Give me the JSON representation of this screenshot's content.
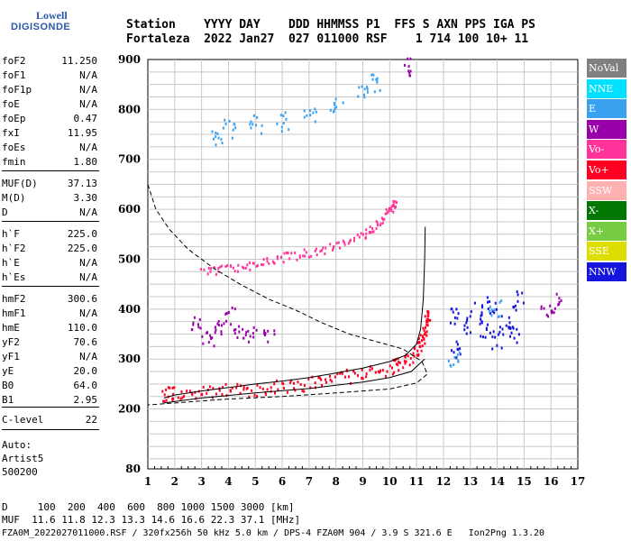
{
  "logo": {
    "line1": "Lowell",
    "line2": "DIGISONDE"
  },
  "header": {
    "row1": "Station    YYYY DAY    DDD HHMMSS P1  FFS S AXN PPS IGA PS",
    "row2": "Fortaleza  2022 Jan27  027 011000 RSF    1 714 100 10+ 11"
  },
  "params": [
    {
      "k": "foF2",
      "v": "11.250"
    },
    {
      "k": "foF1",
      "v": "N/A"
    },
    {
      "k": "foF1p",
      "v": "N/A"
    },
    {
      "k": "foE",
      "v": "N/A"
    },
    {
      "k": "foEp",
      "v": "0.47"
    },
    {
      "k": "fxI",
      "v": "11.95"
    },
    {
      "k": "foEs",
      "v": "N/A"
    },
    {
      "k": "fmin",
      "v": "1.80"
    },
    {
      "k": "MUF(D)",
      "v": "37.13"
    },
    {
      "k": "M(D)",
      "v": "3.30"
    },
    {
      "k": "D",
      "v": "N/A"
    },
    {
      "k": "h`F",
      "v": "225.0"
    },
    {
      "k": "h`F2",
      "v": "225.0"
    },
    {
      "k": "h`E",
      "v": "N/A"
    },
    {
      "k": "h`Es",
      "v": "N/A"
    },
    {
      "k": "hmF2",
      "v": "300.6"
    },
    {
      "k": "hmF1",
      "v": "N/A"
    },
    {
      "k": "hmE",
      "v": "110.0"
    },
    {
      "k": "yF2",
      "v": "70.6"
    },
    {
      "k": "yF1",
      "v": "N/A"
    },
    {
      "k": "yE",
      "v": "20.0"
    },
    {
      "k": "B0",
      "v": "64.0"
    },
    {
      "k": "B1",
      "v": "2.95"
    },
    {
      "k": "C-level",
      "v": "22"
    }
  ],
  "auto": {
    "line1": "Auto:",
    "line2": "Artist5",
    "line3": "500200"
  },
  "legend": [
    {
      "label": "NoVal",
      "color": "#808080"
    },
    {
      "label": "NNE",
      "color": "#00e0ff"
    },
    {
      "label": "E",
      "color": "#3aa0f0"
    },
    {
      "label": "W",
      "color": "#9900aa"
    },
    {
      "label": "Vo-",
      "color": "#ff3399"
    },
    {
      "label": "Vo+",
      "color": "#ff0022"
    },
    {
      "label": "SSW",
      "color": "#ffb0b0"
    },
    {
      "label": "X-",
      "color": "#007700"
    },
    {
      "label": "X+",
      "color": "#77cc44"
    },
    {
      "label": "SSE",
      "color": "#dddd00"
    },
    {
      "label": "NNW",
      "color": "#1515dd"
    }
  ],
  "bottom": {
    "line1": "D     100  200  400  600  800 1000 1500 3000 [km]",
    "line2": "MUF  11.6 11.8 12.3 13.3 14.6 16.6 22.3 37.1 [MHz]"
  },
  "fileinfo": "FZA0M_2022027011000.RSF / 320fx256h 50 kHz 5.0 km / DPS-4 FZA0M 904 / 3.9 S 321.6 E   Ion2Png 1.3.20",
  "chart_data": {
    "type": "scatter",
    "title": "",
    "xlabel": "",
    "ylabel": "",
    "x_ticks": [
      1,
      2,
      3,
      4,
      5,
      6,
      7,
      8,
      9,
      10,
      11,
      12,
      13,
      14,
      15,
      16,
      17
    ],
    "y_ticks": [
      80,
      200,
      300,
      400,
      500,
      600,
      700,
      800,
      900
    ],
    "xlim": [
      1,
      17
    ],
    "ylim": [
      80,
      900
    ],
    "grid": true,
    "legend_placement": "right",
    "series": [
      {
        "name": "Vo+",
        "kind": "trace",
        "color": "#ff0022",
        "points": [
          [
            1.5,
            232
          ],
          [
            2,
            232
          ],
          [
            3,
            234
          ],
          [
            4,
            238
          ],
          [
            5,
            242
          ],
          [
            6,
            247
          ],
          [
            7,
            253
          ],
          [
            8,
            262
          ],
          [
            9,
            272
          ],
          [
            10,
            285
          ],
          [
            10.5,
            295
          ],
          [
            11,
            318
          ],
          [
            11.2,
            345
          ],
          [
            11.35,
            375
          ],
          [
            11.45,
            400
          ]
        ]
      },
      {
        "name": "Vo-",
        "kind": "trace",
        "color": "#ff3399",
        "points": [
          [
            3,
            475
          ],
          [
            4,
            482
          ],
          [
            5,
            492
          ],
          [
            6,
            505
          ],
          [
            7,
            515
          ],
          [
            8,
            528
          ],
          [
            9,
            550
          ],
          [
            9.5,
            570
          ],
          [
            10,
            600
          ],
          [
            10.2,
            615
          ]
        ]
      },
      {
        "name": "NNW",
        "kind": "cluster",
        "color": "#1515dd",
        "points": [
          [
            12.4,
            385
          ],
          [
            12.5,
            318
          ],
          [
            12.8,
            370
          ],
          [
            13.2,
            395
          ],
          [
            13.5,
            360
          ],
          [
            13.8,
            410
          ],
          [
            14,
            340
          ],
          [
            14.3,
            380
          ],
          [
            14.6,
            352
          ],
          [
            14.8,
            418
          ]
        ]
      },
      {
        "name": "W",
        "kind": "cluster",
        "color": "#9900aa",
        "points": [
          [
            2.8,
            380
          ],
          [
            3.2,
            345
          ],
          [
            3.6,
            372
          ],
          [
            4,
            392
          ],
          [
            4.4,
            360
          ],
          [
            4.8,
            352
          ],
          [
            5.5,
            340
          ],
          [
            10.6,
            890
          ],
          [
            15.8,
            405
          ],
          [
            16.2,
            415
          ]
        ]
      },
      {
        "name": "E",
        "kind": "cluster",
        "color": "#3aa0f0",
        "points": [
          [
            4,
            762
          ],
          [
            5,
            772
          ],
          [
            6,
            778
          ],
          [
            7,
            788
          ],
          [
            8,
            812
          ],
          [
            9,
            836
          ],
          [
            9.5,
            856
          ],
          [
            3.6,
            745
          ],
          [
            12.4,
            308
          ],
          [
            13.9,
            400
          ]
        ]
      }
    ],
    "lines": [
      {
        "name": "profile_upper",
        "style": "solid",
        "points": [
          [
            1.6,
            222
          ],
          [
            2,
            228
          ],
          [
            3,
            236
          ],
          [
            4,
            243
          ],
          [
            5,
            250
          ],
          [
            6,
            256
          ],
          [
            7,
            263
          ],
          [
            8,
            272
          ],
          [
            9,
            282
          ],
          [
            10,
            295
          ],
          [
            10.6,
            308
          ],
          [
            11,
            330
          ],
          [
            11.15,
            360
          ],
          [
            11.25,
            420
          ],
          [
            11.3,
            500
          ],
          [
            11.32,
            565
          ]
        ]
      },
      {
        "name": "profile_lower",
        "style": "solid",
        "points": [
          [
            1.6,
            212
          ],
          [
            3,
            222
          ],
          [
            5,
            232
          ],
          [
            7,
            241
          ],
          [
            9,
            254
          ],
          [
            10,
            263
          ],
          [
            10.8,
            275
          ],
          [
            11.3,
            300
          ]
        ]
      },
      {
        "name": "model_dashed",
        "style": "dashed",
        "points": [
          [
            1,
            650
          ],
          [
            1.3,
            600
          ],
          [
            1.8,
            560
          ],
          [
            2.5,
            520
          ],
          [
            3.5,
            480
          ],
          [
            4.5,
            448
          ],
          [
            5.5,
            420
          ],
          [
            6.5,
            398
          ],
          [
            7.5,
            372
          ],
          [
            8.5,
            350
          ],
          [
            9.5,
            335
          ],
          [
            10.5,
            320
          ],
          [
            11.2,
            295
          ],
          [
            11.4,
            270
          ],
          [
            11,
            252
          ],
          [
            10,
            240
          ],
          [
            8,
            232
          ],
          [
            6,
            225
          ],
          [
            4,
            220
          ],
          [
            1,
            208
          ]
        ]
      }
    ]
  }
}
